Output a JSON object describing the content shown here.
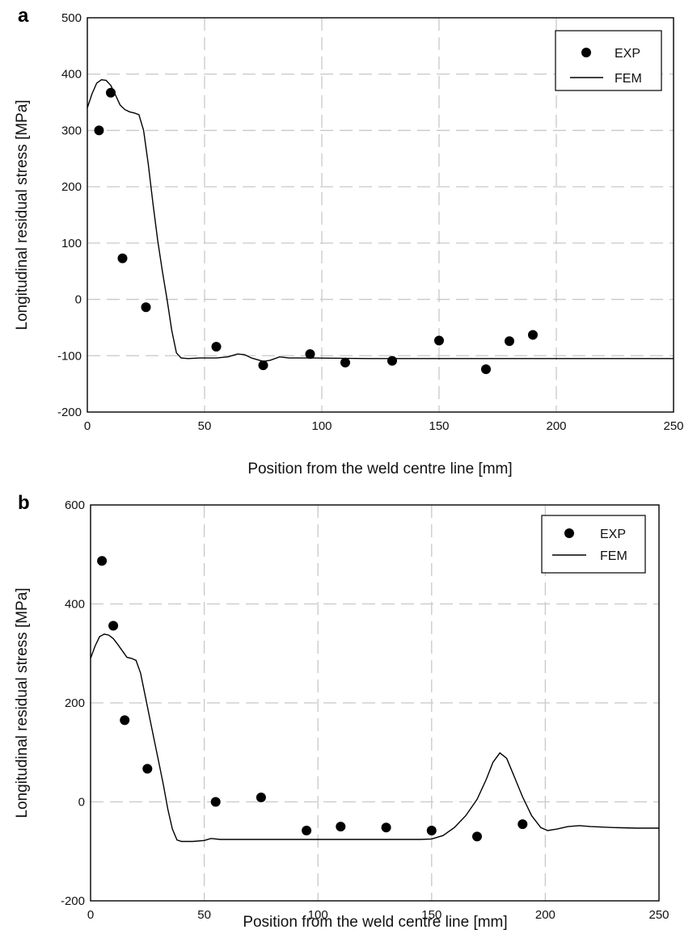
{
  "chart_data": [
    {
      "panel_label": "a",
      "type": "scatter",
      "xlabel": "Position from the weld centre line [mm]",
      "ylabel": "Longitudinal residual stress [MPa]",
      "xlim": [
        0,
        250
      ],
      "ylim": [
        -200,
        500
      ],
      "x_ticks": [
        0,
        50,
        100,
        150,
        200,
        250
      ],
      "y_ticks": [
        -200,
        -100,
        0,
        100,
        200,
        300,
        400,
        500
      ],
      "grid": "dashed",
      "legend_position": "top-right",
      "series": [
        {
          "name": "EXP",
          "kind": "markers",
          "points": [
            [
              5,
              300
            ],
            [
              10,
              367
            ],
            [
              15,
              73
            ],
            [
              25,
              -14
            ],
            [
              55,
              -84
            ],
            [
              75,
              -117
            ],
            [
              95,
              -97
            ],
            [
              110,
              -112
            ],
            [
              130,
              -109
            ],
            [
              150,
              -73
            ],
            [
              170,
              -124
            ],
            [
              180,
              -74
            ],
            [
              190,
              -63
            ]
          ]
        },
        {
          "name": "FEM",
          "kind": "line",
          "points": [
            [
              0,
              340
            ],
            [
              2,
              365
            ],
            [
              4,
              384
            ],
            [
              6,
              390
            ],
            [
              8,
              389
            ],
            [
              10,
              380
            ],
            [
              12,
              363
            ],
            [
              14,
              345
            ],
            [
              16,
              337
            ],
            [
              18,
              333
            ],
            [
              20,
              331
            ],
            [
              22,
              328
            ],
            [
              24,
              300
            ],
            [
              26,
              240
            ],
            [
              28,
              170
            ],
            [
              30,
              105
            ],
            [
              32,
              50
            ],
            [
              34,
              0
            ],
            [
              36,
              -55
            ],
            [
              38,
              -95
            ],
            [
              40,
              -104
            ],
            [
              43,
              -105
            ],
            [
              48,
              -104
            ],
            [
              55,
              -104
            ],
            [
              60,
              -102
            ],
            [
              64,
              -97
            ],
            [
              67,
              -98
            ],
            [
              70,
              -104
            ],
            [
              75,
              -110
            ],
            [
              78,
              -108
            ],
            [
              82,
              -102
            ],
            [
              86,
              -104
            ],
            [
              95,
              -104
            ],
            [
              120,
              -105
            ],
            [
              160,
              -105
            ],
            [
              200,
              -105
            ],
            [
              250,
              -105
            ]
          ]
        }
      ]
    },
    {
      "panel_label": "b",
      "type": "scatter",
      "xlabel": "Position from the weld centre line [mm]",
      "ylabel": "Longitudinal residual stress [MPa]",
      "xlim": [
        0,
        250
      ],
      "ylim": [
        -200,
        600
      ],
      "x_ticks": [
        0,
        50,
        100,
        150,
        200,
        250
      ],
      "y_ticks": [
        -200,
        0,
        200,
        400,
        600
      ],
      "grid": "dashed",
      "legend_position": "top-right",
      "series": [
        {
          "name": "EXP",
          "kind": "markers",
          "points": [
            [
              5,
              487
            ],
            [
              10,
              356
            ],
            [
              15,
              165
            ],
            [
              25,
              67
            ],
            [
              55,
              0
            ],
            [
              75,
              9
            ],
            [
              95,
              -58
            ],
            [
              110,
              -50
            ],
            [
              130,
              -52
            ],
            [
              150,
              -58
            ],
            [
              170,
              -70
            ],
            [
              190,
              -45
            ]
          ]
        },
        {
          "name": "FEM",
          "kind": "line",
          "points": [
            [
              0,
              290
            ],
            [
              2,
              315
            ],
            [
              4,
              334
            ],
            [
              6,
              339
            ],
            [
              8,
              337
            ],
            [
              10,
              330
            ],
            [
              12,
              318
            ],
            [
              14,
              305
            ],
            [
              16,
              292
            ],
            [
              18,
              290
            ],
            [
              20,
              286
            ],
            [
              22,
              260
            ],
            [
              24,
              215
            ],
            [
              26,
              170
            ],
            [
              28,
              125
            ],
            [
              30,
              80
            ],
            [
              32,
              35
            ],
            [
              34,
              -15
            ],
            [
              36,
              -55
            ],
            [
              38,
              -77
            ],
            [
              40,
              -80
            ],
            [
              45,
              -80
            ],
            [
              50,
              -78
            ],
            [
              53,
              -74
            ],
            [
              57,
              -76
            ],
            [
              70,
              -76
            ],
            [
              100,
              -76
            ],
            [
              130,
              -76
            ],
            [
              145,
              -76
            ],
            [
              150,
              -75
            ],
            [
              155,
              -68
            ],
            [
              160,
              -52
            ],
            [
              165,
              -28
            ],
            [
              170,
              5
            ],
            [
              174,
              45
            ],
            [
              177,
              80
            ],
            [
              180,
              99
            ],
            [
              183,
              88
            ],
            [
              186,
              55
            ],
            [
              190,
              10
            ],
            [
              194,
              -28
            ],
            [
              198,
              -52
            ],
            [
              201,
              -58
            ],
            [
              205,
              -55
            ],
            [
              210,
              -50
            ],
            [
              215,
              -48
            ],
            [
              220,
              -50
            ],
            [
              230,
              -52
            ],
            [
              240,
              -53
            ],
            [
              250,
              -53
            ]
          ]
        }
      ]
    }
  ]
}
